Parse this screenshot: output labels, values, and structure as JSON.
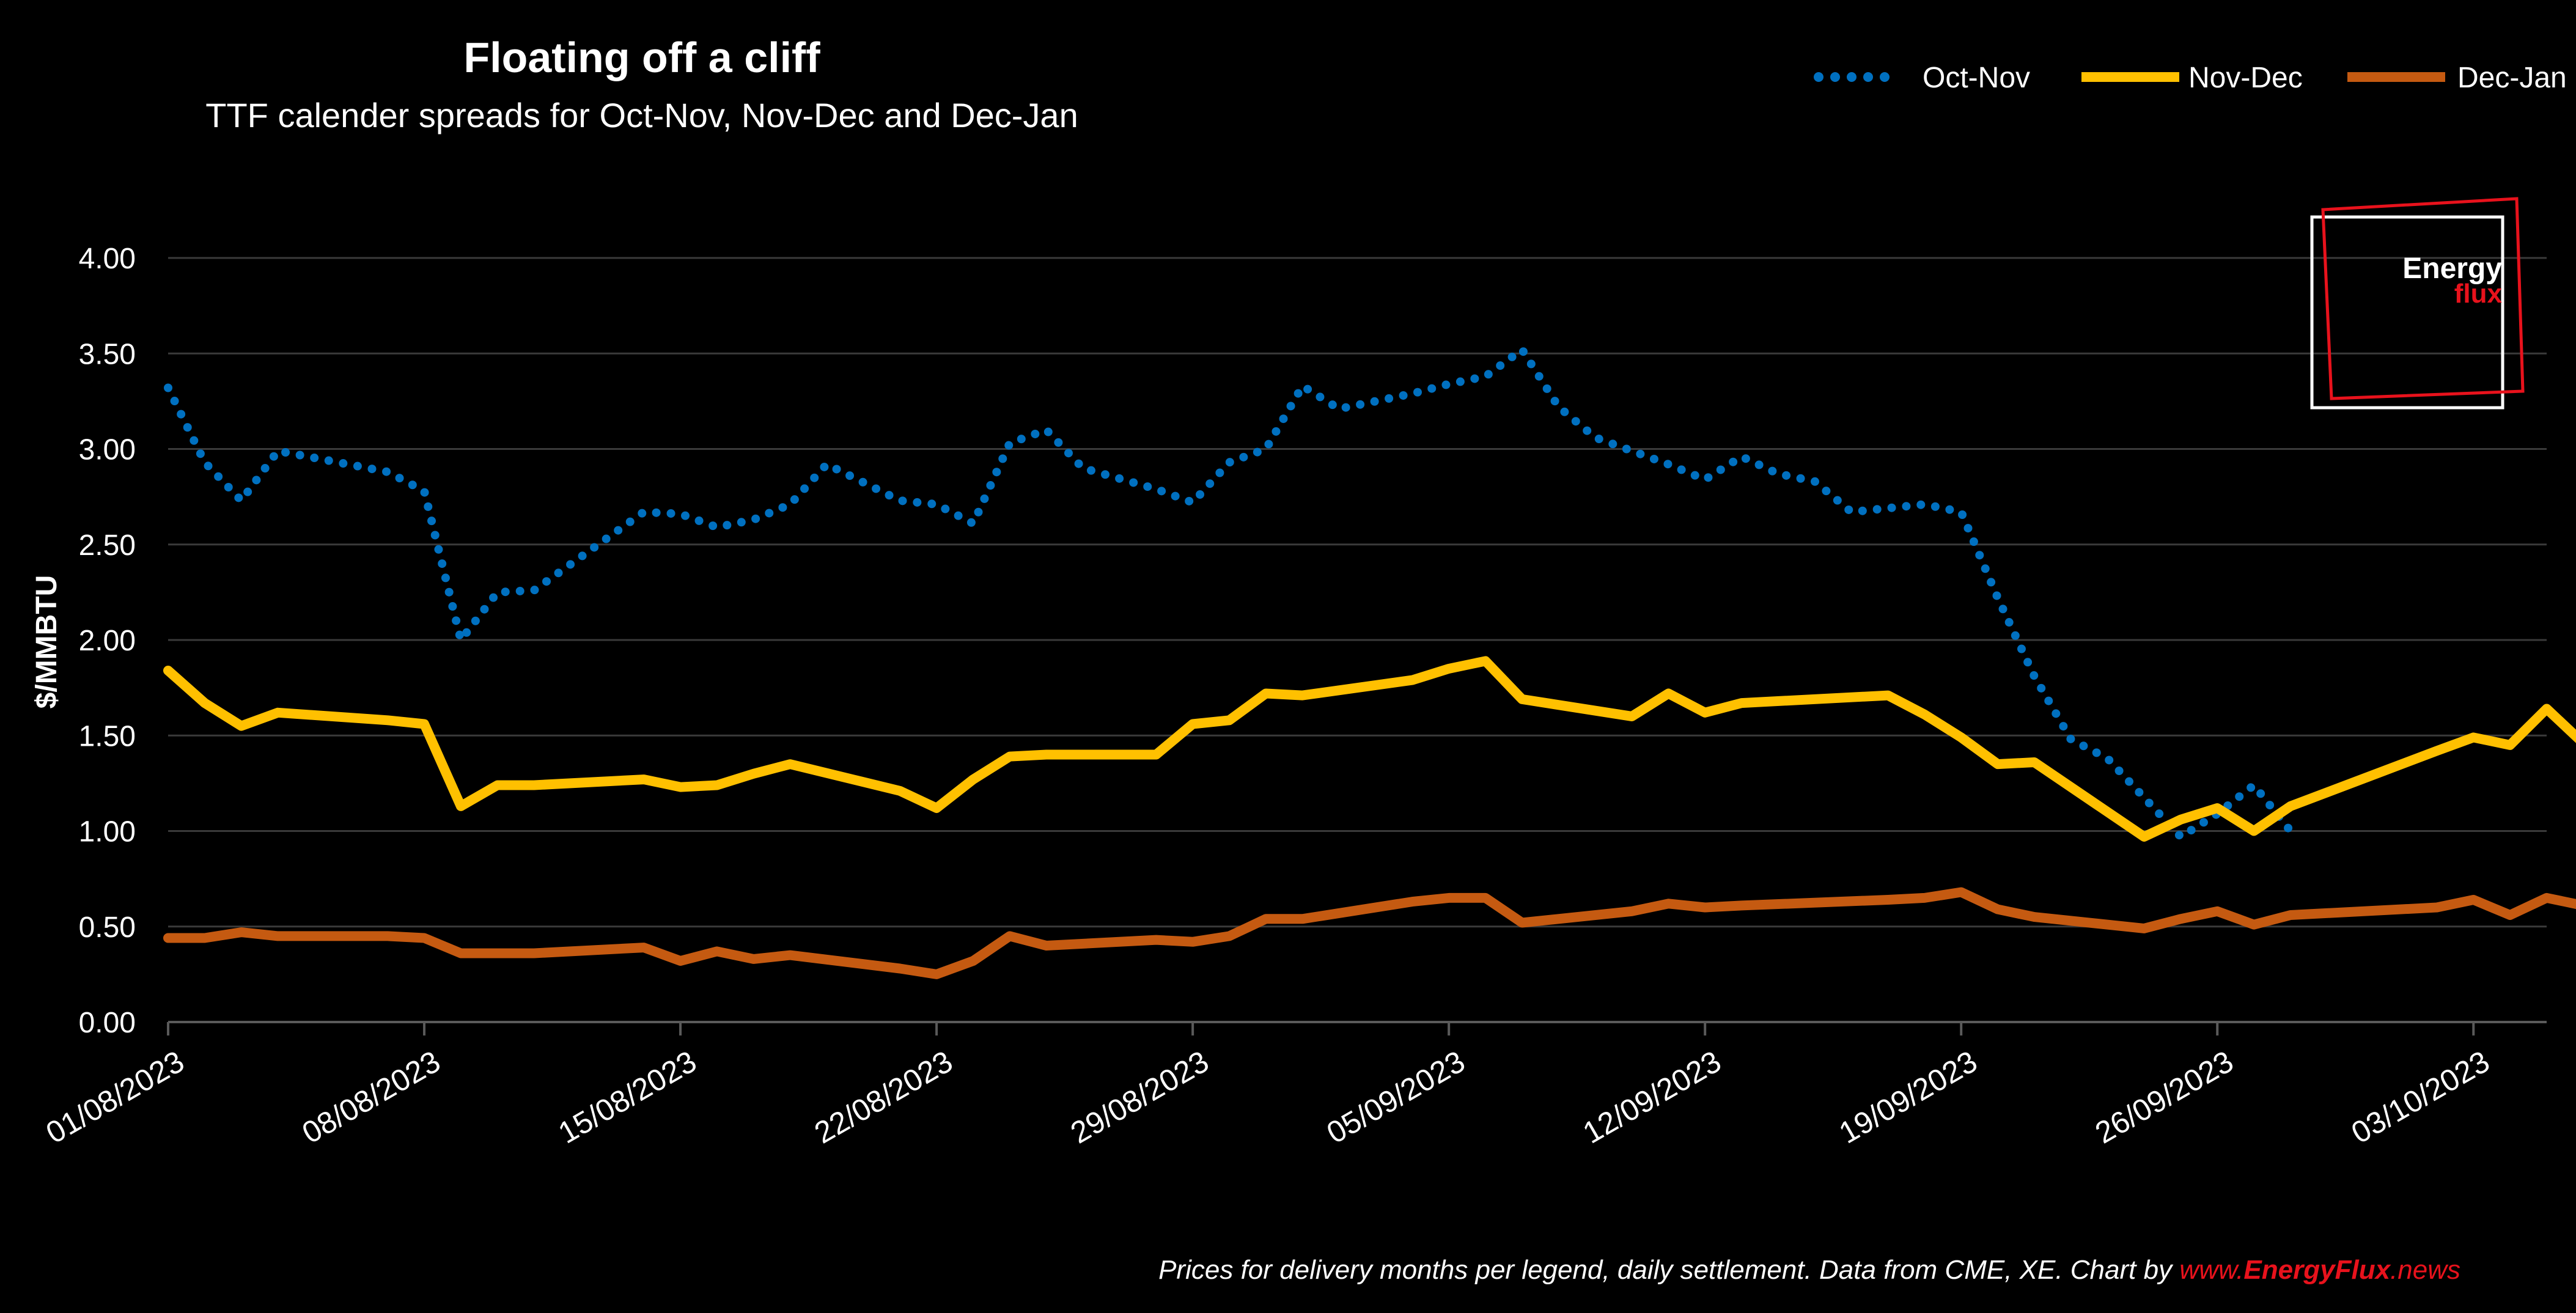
{
  "chart_data": {
    "type": "line",
    "title": "Floating off a cliff",
    "subtitle": "TTF calender spreads for Oct-Nov, Nov-Dec and Dec-Jan",
    "ylabel": "$/MMBTU",
    "xlabel": "",
    "ylim": [
      0,
      4
    ],
    "yticks": [
      "4.00",
      "3.50",
      "3.00",
      "2.50",
      "2.00",
      "1.50",
      "1.00",
      "0.50",
      "0.00"
    ],
    "xlim": [
      "01/08/2023",
      "05/10/2023"
    ],
    "xticks": [
      "01/08/2023",
      "08/08/2023",
      "15/08/2023",
      "22/08/2023",
      "29/08/2023",
      "05/09/2023",
      "12/09/2023",
      "19/09/2023",
      "26/09/2023",
      "03/10/2023"
    ],
    "grid": true,
    "legend_position": "top-right",
    "series": [
      {
        "name": "Oct-Nov",
        "style": "dotted",
        "color": "#0070c0",
        "points": [
          [
            "01/08/2023",
            3.32
          ],
          [
            "02/08/2023",
            2.93
          ],
          [
            "03/08/2023",
            2.73
          ],
          [
            "04/08/2023",
            2.99
          ],
          [
            "07/08/2023",
            2.88
          ],
          [
            "08/08/2023",
            2.78
          ],
          [
            "09/08/2023",
            2.0
          ],
          [
            "10/08/2023",
            2.25
          ],
          [
            "11/08/2023",
            2.26
          ],
          [
            "14/08/2023",
            2.67
          ],
          [
            "15/08/2023",
            2.66
          ],
          [
            "16/08/2023",
            2.59
          ],
          [
            "17/08/2023",
            2.63
          ],
          [
            "18/08/2023",
            2.71
          ],
          [
            "19/08/2023",
            2.92
          ],
          [
            "21/08/2023",
            2.73
          ],
          [
            "22/08/2023",
            2.71
          ],
          [
            "23/08/2023",
            2.61
          ],
          [
            "24/08/2023",
            3.03
          ],
          [
            "25/08/2023",
            3.1
          ],
          [
            "26/08/2023",
            2.9
          ],
          [
            "28/08/2023",
            2.79
          ],
          [
            "29/08/2023",
            2.72
          ],
          [
            "30/08/2023",
            2.93
          ],
          [
            "31/08/2023",
            3.0
          ],
          [
            "01/09/2023",
            3.33
          ],
          [
            "02/09/2023",
            3.21
          ],
          [
            "04/09/2023",
            3.29
          ],
          [
            "05/09/2023",
            3.34
          ],
          [
            "06/09/2023",
            3.38
          ],
          [
            "07/09/2023",
            3.52
          ],
          [
            "08/09/2023",
            3.22
          ],
          [
            "09/09/2023",
            3.06
          ],
          [
            "11/09/2023",
            2.92
          ],
          [
            "12/09/2023",
            2.84
          ],
          [
            "13/09/2023",
            2.96
          ],
          [
            "14/09/2023",
            2.87
          ],
          [
            "15/09/2023",
            2.83
          ],
          [
            "16/09/2023",
            2.67
          ],
          [
            "18/09/2023",
            2.71
          ],
          [
            "19/09/2023",
            2.67
          ],
          [
            "20/09/2023",
            2.22
          ],
          [
            "21/09/2023",
            1.81
          ],
          [
            "22/09/2023",
            1.48
          ],
          [
            "23/09/2023",
            1.38
          ],
          [
            "25/09/2023",
            0.97
          ],
          [
            "26/09/2023",
            1.09
          ],
          [
            "27/09/2023",
            1.24
          ],
          [
            "28/09/2023",
            1.0
          ]
        ]
      },
      {
        "name": "Nov-Dec",
        "style": "solid",
        "color": "#ffc000",
        "points": [
          [
            "01/08/2023",
            1.84
          ],
          [
            "02/08/2023",
            1.67
          ],
          [
            "03/08/2023",
            1.55
          ],
          [
            "04/08/2023",
            1.62
          ],
          [
            "07/08/2023",
            1.58
          ],
          [
            "08/08/2023",
            1.56
          ],
          [
            "09/08/2023",
            1.13
          ],
          [
            "10/08/2023",
            1.24
          ],
          [
            "11/08/2023",
            1.24
          ],
          [
            "14/08/2023",
            1.27
          ],
          [
            "15/08/2023",
            1.23
          ],
          [
            "16/08/2023",
            1.24
          ],
          [
            "17/08/2023",
            1.3
          ],
          [
            "18/08/2023",
            1.35
          ],
          [
            "21/08/2023",
            1.21
          ],
          [
            "22/08/2023",
            1.12
          ],
          [
            "23/08/2023",
            1.27
          ],
          [
            "24/08/2023",
            1.39
          ],
          [
            "25/08/2023",
            1.4
          ],
          [
            "28/08/2023",
            1.4
          ],
          [
            "29/08/2023",
            1.56
          ],
          [
            "30/08/2023",
            1.58
          ],
          [
            "31/08/2023",
            1.72
          ],
          [
            "01/09/2023",
            1.71
          ],
          [
            "04/09/2023",
            1.79
          ],
          [
            "05/09/2023",
            1.85
          ],
          [
            "06/09/2023",
            1.89
          ],
          [
            "07/09/2023",
            1.69
          ],
          [
            "10/09/2023",
            1.6
          ],
          [
            "11/09/2023",
            1.72
          ],
          [
            "12/09/2023",
            1.62
          ],
          [
            "13/09/2023",
            1.67
          ],
          [
            "17/09/2023",
            1.71
          ],
          [
            "18/09/2023",
            1.61
          ],
          [
            "19/09/2023",
            1.49
          ],
          [
            "20/09/2023",
            1.35
          ],
          [
            "21/09/2023",
            1.36
          ],
          [
            "24/09/2023",
            0.97
          ],
          [
            "25/09/2023",
            1.06
          ],
          [
            "26/09/2023",
            1.12
          ],
          [
            "27/09/2023",
            1.0
          ],
          [
            "28/09/2023",
            1.13
          ],
          [
            "02/10/2023",
            1.42
          ],
          [
            "03/10/2023",
            1.49
          ],
          [
            "04/10/2023",
            1.45
          ],
          [
            "05/10/2023",
            1.64
          ],
          [
            "06/10/2023",
            1.46
          ]
        ]
      },
      {
        "name": "Dec-Jan",
        "style": "solid",
        "color": "#c55a11",
        "points": [
          [
            "01/08/2023",
            0.44
          ],
          [
            "02/08/2023",
            0.44
          ],
          [
            "03/08/2023",
            0.47
          ],
          [
            "04/08/2023",
            0.45
          ],
          [
            "07/08/2023",
            0.45
          ],
          [
            "08/08/2023",
            0.44
          ],
          [
            "09/08/2023",
            0.36
          ],
          [
            "10/08/2023",
            0.36
          ],
          [
            "11/08/2023",
            0.36
          ],
          [
            "14/08/2023",
            0.39
          ],
          [
            "15/08/2023",
            0.32
          ],
          [
            "16/08/2023",
            0.37
          ],
          [
            "17/08/2023",
            0.33
          ],
          [
            "18/08/2023",
            0.35
          ],
          [
            "21/08/2023",
            0.28
          ],
          [
            "22/08/2023",
            0.25
          ],
          [
            "23/08/2023",
            0.32
          ],
          [
            "24/08/2023",
            0.45
          ],
          [
            "25/08/2023",
            0.4
          ],
          [
            "28/08/2023",
            0.43
          ],
          [
            "29/08/2023",
            0.42
          ],
          [
            "30/08/2023",
            0.45
          ],
          [
            "31/08/2023",
            0.54
          ],
          [
            "01/09/2023",
            0.54
          ],
          [
            "04/09/2023",
            0.63
          ],
          [
            "05/09/2023",
            0.65
          ],
          [
            "06/09/2023",
            0.65
          ],
          [
            "07/09/2023",
            0.52
          ],
          [
            "10/09/2023",
            0.58
          ],
          [
            "11/09/2023",
            0.62
          ],
          [
            "12/09/2023",
            0.6
          ],
          [
            "13/09/2023",
            0.61
          ],
          [
            "17/09/2023",
            0.64
          ],
          [
            "18/09/2023",
            0.65
          ],
          [
            "19/09/2023",
            0.68
          ],
          [
            "20/09/2023",
            0.59
          ],
          [
            "21/09/2023",
            0.55
          ],
          [
            "24/09/2023",
            0.49
          ],
          [
            "25/09/2023",
            0.54
          ],
          [
            "26/09/2023",
            0.58
          ],
          [
            "27/09/2023",
            0.51
          ],
          [
            "28/09/2023",
            0.56
          ],
          [
            "02/10/2023",
            0.6
          ],
          [
            "03/10/2023",
            0.64
          ],
          [
            "04/10/2023",
            0.56
          ],
          [
            "05/10/2023",
            0.65
          ],
          [
            "06/10/2023",
            0.61
          ]
        ]
      }
    ],
    "footer": {
      "text": "Prices for delivery months per legend, daily settlement. Data from CME, XE. Chart by ",
      "link_prefix": "www.",
      "link_brand": "EnergyFlux",
      "link_suffix": ".news",
      "link_color": "#e8121c"
    }
  },
  "logo": {
    "line1": "Energy",
    "line2": "flux",
    "accent_color": "#e8121c"
  }
}
